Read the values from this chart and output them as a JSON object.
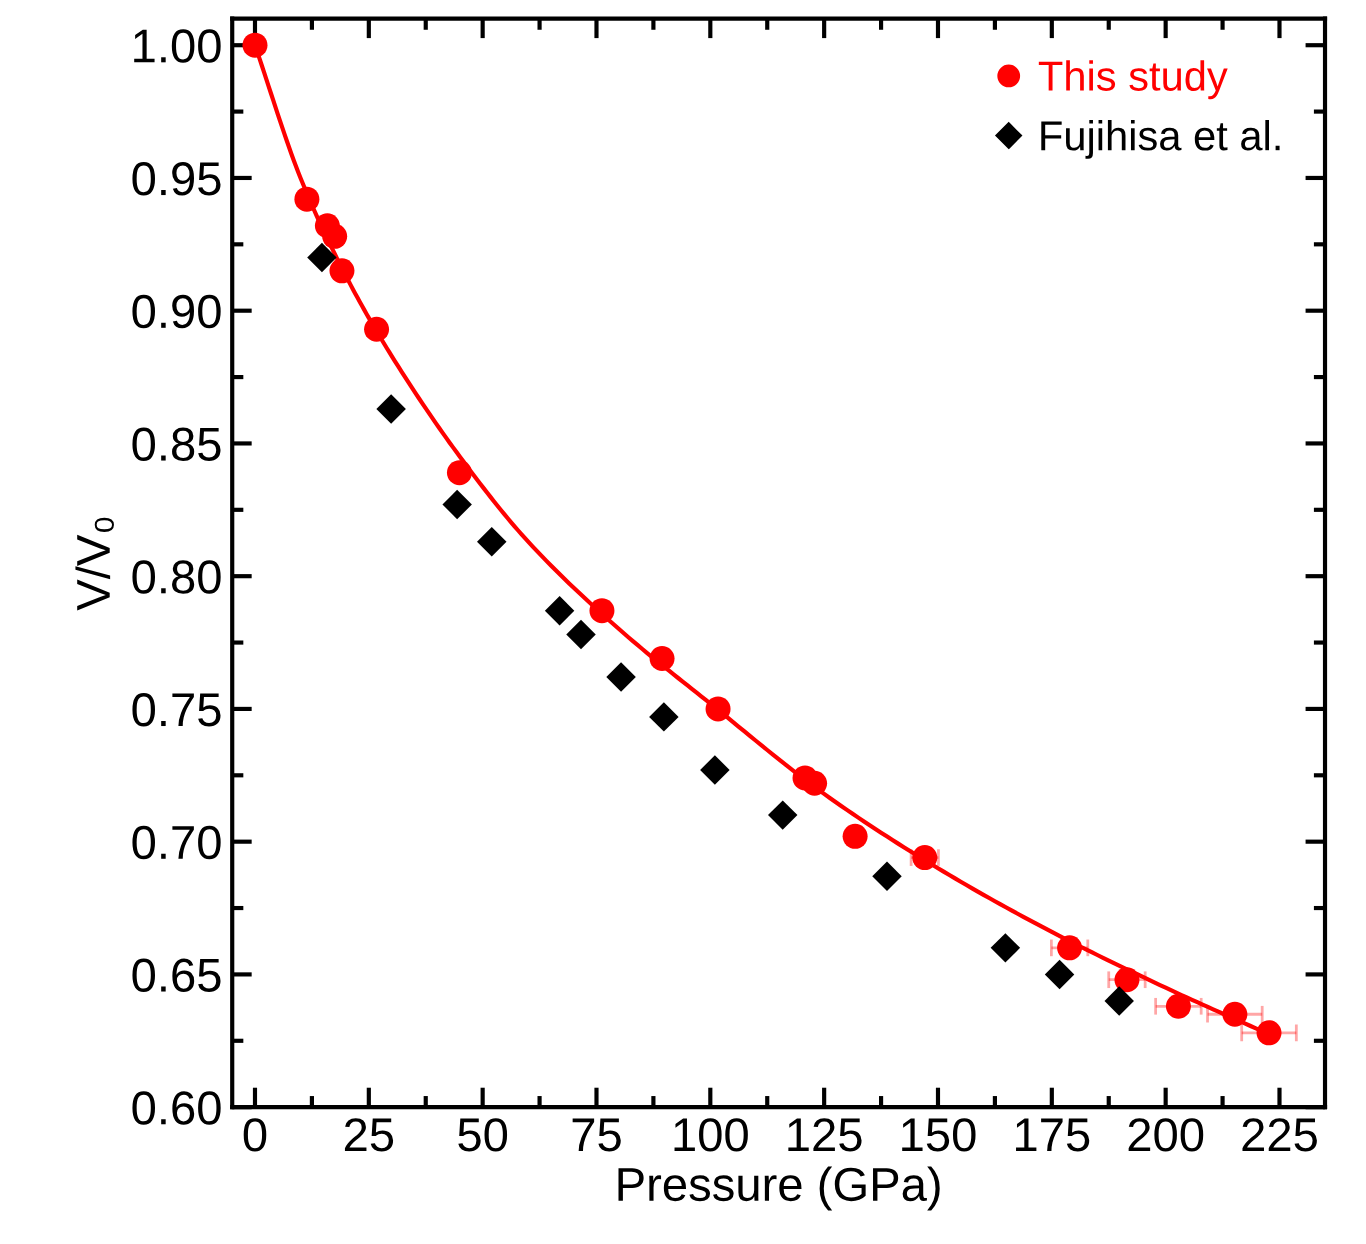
{
  "chart_data": {
    "type": "scatter",
    "xlabel": "Pressure (GPa)",
    "ylabel": "V/V₀",
    "xlim": [
      -5,
      235
    ],
    "ylim": [
      0.6,
      1.01
    ],
    "xticks": [
      0,
      25,
      50,
      75,
      100,
      125,
      150,
      175,
      200,
      225
    ],
    "yticks": [
      {
        "value": 0.6,
        "label": "0.60"
      },
      {
        "value": 0.65,
        "label": "0.65"
      },
      {
        "value": 0.7,
        "label": "0.70"
      },
      {
        "value": 0.75,
        "label": "0.75"
      },
      {
        "value": 0.8,
        "label": "0.80"
      },
      {
        "value": 0.85,
        "label": "0.85"
      },
      {
        "value": 0.9,
        "label": "0.90"
      },
      {
        "value": 0.95,
        "label": "0.95"
      },
      {
        "value": 1.0,
        "label": "1.00"
      }
    ],
    "grid": false,
    "legend": "top right",
    "series": [
      {
        "type": "line",
        "color": "#ff0000",
        "marker": "none",
        "line_style": "solid",
        "x": [
          0,
          10,
          20,
          30,
          45,
          60,
          80,
          100,
          125,
          150,
          175,
          200,
          222
        ],
        "values": [
          1.0,
          0.95,
          0.913,
          0.883,
          0.845,
          0.813,
          0.78,
          0.752,
          0.718,
          0.69,
          0.666,
          0.645,
          0.628
        ]
      },
      {
        "name": "This study",
        "color": "#ff0000",
        "marker": "circle",
        "x": [
          0,
          11.4,
          15.9,
          17.5,
          19.1,
          26.7,
          44.9,
          76.2,
          89.4,
          101.7,
          120.8,
          122.9,
          131.8,
          147.1,
          178.9,
          191.5,
          202.8,
          215.2,
          222.7
        ],
        "values": [
          1.0,
          0.942,
          0.932,
          0.928,
          0.915,
          0.893,
          0.839,
          0.787,
          0.769,
          0.75,
          0.724,
          0.722,
          0.702,
          0.694,
          0.66,
          0.648,
          0.638,
          0.635,
          0.628
        ],
        "xerrors": [
          null,
          null,
          null,
          null,
          null,
          null,
          null,
          null,
          null,
          null,
          null,
          null,
          null,
          3,
          4,
          4,
          5,
          6,
          6
        ]
      },
      {
        "name": "Fujihisa et al.",
        "color": "#000000",
        "marker": "diamond",
        "x": [
          14.7,
          29.9,
          44.4,
          52.0,
          66.9,
          71.6,
          80.4,
          89.8,
          101.0,
          115.9,
          138.8,
          164.8,
          176.7,
          189.8
        ],
        "values": [
          0.92,
          0.863,
          0.827,
          0.813,
          0.787,
          0.778,
          0.762,
          0.747,
          0.727,
          0.71,
          0.687,
          0.66,
          0.65,
          0.64
        ]
      }
    ]
  }
}
